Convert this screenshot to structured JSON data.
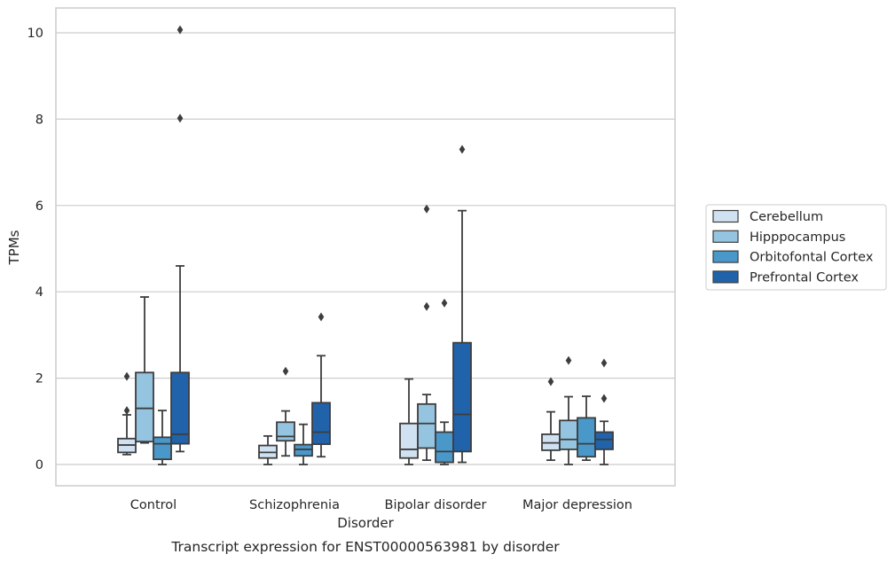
{
  "chart_data": {
    "type": "box",
    "title": "",
    "caption": "Transcript expression for ENST00000563981 by disorder",
    "xlabel": "Disorder",
    "ylabel": "TPMs",
    "ylim": [
      -0.48,
      10.55
    ],
    "yticks": [
      0,
      2,
      4,
      6,
      8,
      10
    ],
    "grid": "horizontal",
    "legend_position": "right",
    "categories": [
      "Control",
      "Schizophrenia",
      "Bipolar disorder",
      "Major depression"
    ],
    "series": [
      {
        "name": "Cerebellum",
        "color": "#d0e1f2",
        "boxes": [
          {
            "whislo": 0.23,
            "q1": 0.28,
            "med": 0.45,
            "q3": 0.6,
            "whishi": 1.15,
            "fliers": [
              1.25,
              2.04
            ]
          },
          {
            "whislo": 0.0,
            "q1": 0.15,
            "med": 0.28,
            "q3": 0.44,
            "whishi": 0.66,
            "fliers": []
          },
          {
            "whislo": 0.0,
            "q1": 0.15,
            "med": 0.35,
            "q3": 0.95,
            "whishi": 1.98,
            "fliers": []
          },
          {
            "whislo": 0.1,
            "q1": 0.33,
            "med": 0.5,
            "q3": 0.7,
            "whishi": 1.22,
            "fliers": [
              1.92
            ]
          }
        ]
      },
      {
        "name": "Hipppocampus",
        "color": "#94c4df",
        "boxes": [
          {
            "whislo": 0.5,
            "q1": 0.53,
            "med": 1.3,
            "q3": 2.13,
            "whishi": 3.88,
            "fliers": []
          },
          {
            "whislo": 0.2,
            "q1": 0.55,
            "med": 0.65,
            "q3": 0.98,
            "whishi": 1.24,
            "fliers": [
              2.16
            ]
          },
          {
            "whislo": 0.1,
            "q1": 0.38,
            "med": 0.95,
            "q3": 1.4,
            "whishi": 1.62,
            "fliers": [
              3.66,
              5.92
            ]
          },
          {
            "whislo": 0.0,
            "q1": 0.35,
            "med": 0.58,
            "q3": 1.02,
            "whishi": 1.57,
            "fliers": [
              2.41
            ]
          }
        ]
      },
      {
        "name": "Orbitofontal Cortex",
        "color": "#4a98c9",
        "boxes": [
          {
            "whislo": 0.0,
            "q1": 0.12,
            "med": 0.48,
            "q3": 0.63,
            "whishi": 1.25,
            "fliers": []
          },
          {
            "whislo": 0.0,
            "q1": 0.2,
            "med": 0.35,
            "q3": 0.46,
            "whishi": 0.93,
            "fliers": []
          },
          {
            "whislo": 0.0,
            "q1": 0.05,
            "med": 0.3,
            "q3": 0.75,
            "whishi": 0.98,
            "fliers": [
              3.74
            ]
          },
          {
            "whislo": 0.1,
            "q1": 0.18,
            "med": 0.48,
            "q3": 1.08,
            "whishi": 1.58,
            "fliers": []
          }
        ]
      },
      {
        "name": "Prefrontal Cortex",
        "color": "#2163aa",
        "boxes": [
          {
            "whislo": 0.3,
            "q1": 0.48,
            "med": 0.7,
            "q3": 2.13,
            "whishi": 4.6,
            "fliers": [
              8.02,
              10.07
            ]
          },
          {
            "whislo": 0.18,
            "q1": 0.47,
            "med": 0.75,
            "q3": 1.43,
            "whishi": 2.52,
            "fliers": [
              3.42
            ]
          },
          {
            "whislo": 0.05,
            "q1": 0.3,
            "med": 1.16,
            "q3": 2.82,
            "whishi": 5.88,
            "fliers": [
              7.3
            ]
          },
          {
            "whislo": 0.0,
            "q1": 0.35,
            "med": 0.58,
            "q3": 0.75,
            "whishi": 1.0,
            "fliers": [
              1.53,
              2.35
            ]
          }
        ]
      }
    ]
  }
}
